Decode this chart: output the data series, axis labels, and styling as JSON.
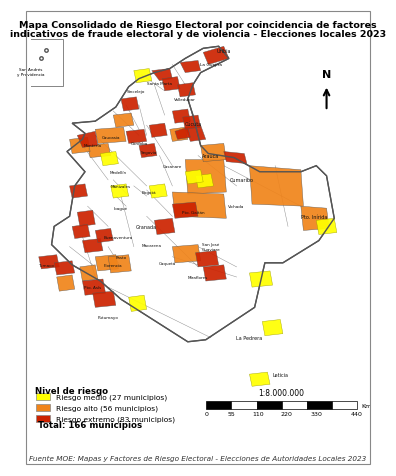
{
  "title_line1": "Mapa Consolidado de Riesgo Electoral por coincidencia de factores",
  "title_line2": "indicativos de fraude electoral y de violencia - Elecciones locales 2023",
  "legend_title": "Nivel de riesgo",
  "legend_items": [
    {
      "label": "Riesgo medio (27 municipios)",
      "color": "#FFFF00"
    },
    {
      "label": "Riesgo alto (56 municipios)",
      "color": "#F0841A"
    },
    {
      "label": "Riesgo extremo (83 municipios)",
      "color": "#CC2200"
    }
  ],
  "total_label": "Total: 166 municipios",
  "source_text": "Fuente MOE: Mapas y Factores de Riesgo Electoral - Elecciones de Autoridades Locales 2023",
  "scale_label": "1:8.000.000",
  "scale_unit": "Km",
  "background_color": "#FFFFFF",
  "border_color": "#555555",
  "title_fontsize": 6.8,
  "legend_fontsize": 6.2,
  "source_fontsize": 5.2,
  "xlim": [
    -79.0,
    -66.0
  ],
  "ylim": [
    -4.5,
    13.0
  ]
}
